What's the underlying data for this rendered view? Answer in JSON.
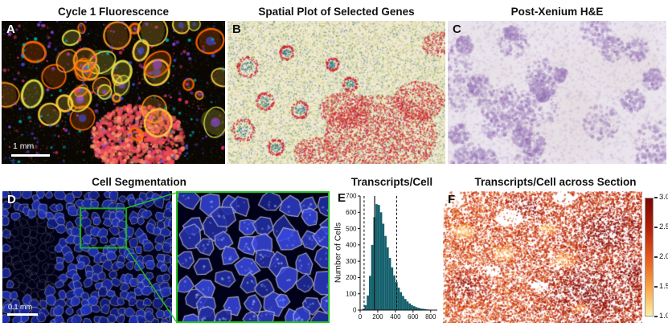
{
  "panels": {
    "a": {
      "label": "A",
      "title": "Cycle 1 Fluorescence",
      "scale_bar": "1 mm"
    },
    "b": {
      "label": "B",
      "title": "Spatial Plot of Selected Genes"
    },
    "c": {
      "label": "C",
      "title": "Post-Xenium H&E"
    },
    "d": {
      "label": "D",
      "title": "Cell Segmentation",
      "scale_bar": "0.1 mm"
    },
    "e": {
      "label": "E",
      "title": "Transcripts/Cell"
    },
    "f": {
      "label": "F",
      "title": "Transcripts/Cell across Section"
    }
  },
  "chart_data": {
    "type": "bar",
    "title": "Transcripts/Cell",
    "xlabel": "",
    "ylabel": "Number of Cells",
    "xlim": [
      0,
      875
    ],
    "ylim": [
      0,
      700
    ],
    "x_ticks": [
      0,
      200,
      400,
      600,
      800
    ],
    "y_ticks": [
      0,
      100,
      200,
      300,
      400,
      500,
      600,
      700
    ],
    "bins_start": 0,
    "bin_width": 25,
    "values": [
      2,
      8,
      30,
      90,
      210,
      400,
      570,
      650,
      645,
      600,
      530,
      455,
      385,
      320,
      262,
      213,
      172,
      138,
      110,
      87,
      68,
      53,
      41,
      31,
      24,
      18,
      14,
      10,
      8,
      6,
      4,
      3,
      2,
      2,
      1
    ],
    "bar_color": "#15616d",
    "annotations": {
      "solid_line_x": 165,
      "dashed_lines_x": [
        45,
        415
      ]
    },
    "grid": false,
    "legend": null
  },
  "colorbar": {
    "ticks": [
      "3.0",
      "2.5",
      "2.0",
      "1.5",
      "1.0"
    ],
    "colors_top_to_bottom": [
      "#7a0403",
      "#b11f0a",
      "#e4571b",
      "#f9a242",
      "#fdeea2"
    ]
  },
  "palettes": {
    "a": {
      "bg": "#0a0703",
      "ring_colors": [
        "#ff9a1e",
        "#ffd23e",
        "#ff6a00",
        "#e8e84a"
      ],
      "accent_colors": [
        "#4455ff",
        "#9a4dff",
        "#00c8c8",
        "#ff3a7a"
      ],
      "mass_color": "#ef4858"
    },
    "b": {
      "bg": "#efe9cf",
      "dot_colors": [
        "#cc2233",
        "#3a8a3a",
        "#2255cc",
        "#b8b832",
        "#8888cc"
      ]
    },
    "c": {
      "bg": "#ece7f0",
      "blob_colors": [
        "#c3aed3",
        "#a98cc3",
        "#8f6bb0",
        "#e7d3df"
      ]
    },
    "d": {
      "bg": "#01021a",
      "cell_fill": "#2238cc",
      "cell_fill_inset": "#3a4ae8",
      "cell_stroke": "#d0d0d0",
      "box_color": "#21c421"
    },
    "f": {
      "bg": "#ffffff"
    }
  }
}
